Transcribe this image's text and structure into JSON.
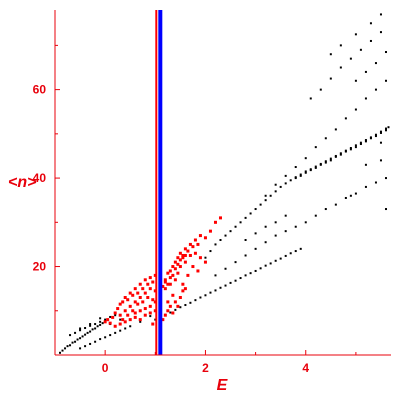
{
  "chart_data": {
    "type": "scatter",
    "title": "",
    "xlabel": "E",
    "ylabel": "<n>",
    "xlim": [
      -1.0,
      5.7
    ],
    "ylim": [
      0,
      78
    ],
    "x_ticks": [
      0,
      2,
      4
    ],
    "x_tick_labels": [
      "0",
      "2",
      "4"
    ],
    "y_ticks": [
      20,
      40,
      60
    ],
    "y_tick_labels": [
      "20",
      "40",
      "60"
    ],
    "grid": false,
    "legend": "none",
    "colors": {
      "axes": "#e8000b",
      "label_text": "#e8000b",
      "scatter_black": "#000000",
      "scatter_red": "#ff0000",
      "vline_blue": "#0000ff",
      "vline_red": "#ff0000"
    },
    "vertical_lines": [
      {
        "x": 1.02,
        "color": "#ff0000"
      },
      {
        "x": 1.1,
        "color": "#0000ff"
      }
    ],
    "series": [
      {
        "points": [
          [
            -0.9,
            0.5
          ],
          [
            -0.85,
            1.0
          ],
          [
            -0.8,
            1.5
          ],
          [
            -0.75,
            2.0
          ],
          [
            -0.7,
            2.2
          ],
          [
            -0.65,
            2.8
          ],
          [
            -0.6,
            3.0
          ],
          [
            -0.55,
            3.5
          ],
          [
            -0.5,
            3.8
          ],
          [
            -0.45,
            4.2
          ],
          [
            -0.4,
            4.6
          ],
          [
            -0.35,
            5.0
          ],
          [
            -0.3,
            5.3
          ],
          [
            -0.25,
            5.8
          ],
          [
            -0.2,
            6.0
          ],
          [
            -0.15,
            6.5
          ],
          [
            -0.1,
            6.8
          ],
          [
            -0.05,
            7.2
          ],
          [
            0.0,
            7.5
          ],
          [
            0.05,
            7.9
          ],
          [
            -0.7,
            4.5
          ],
          [
            -0.6,
            5.0
          ],
          [
            -0.5,
            5.6
          ],
          [
            -0.4,
            6.1
          ],
          [
            -0.3,
            6.6
          ],
          [
            -0.2,
            7.0
          ],
          [
            -0.1,
            7.5
          ],
          [
            0.0,
            8.0
          ],
          [
            0.1,
            8.6
          ],
          [
            0.2,
            9.0
          ],
          [
            -0.5,
            1.5
          ],
          [
            -0.4,
            2.0
          ],
          [
            -0.3,
            2.5
          ],
          [
            -0.2,
            3.0
          ],
          [
            -0.1,
            3.6
          ],
          [
            0.0,
            4.0
          ],
          [
            0.1,
            4.5
          ],
          [
            0.2,
            5.0
          ],
          [
            0.3,
            5.5
          ],
          [
            0.4,
            6.0
          ],
          [
            1.0,
            8.0
          ],
          [
            1.1,
            8.6
          ],
          [
            1.2,
            9.1
          ],
          [
            1.3,
            9.6
          ],
          [
            1.4,
            10.2
          ],
          [
            1.5,
            10.8
          ],
          [
            1.6,
            11.3
          ],
          [
            1.7,
            11.8
          ],
          [
            1.8,
            12.4
          ],
          [
            1.9,
            13.0
          ],
          [
            2.0,
            13.5
          ],
          [
            2.1,
            14.1
          ],
          [
            2.2,
            14.6
          ],
          [
            2.3,
            15.2
          ],
          [
            2.4,
            15.7
          ],
          [
            2.5,
            16.3
          ],
          [
            2.6,
            16.8
          ],
          [
            2.7,
            17.4
          ],
          [
            2.8,
            18.0
          ],
          [
            2.9,
            18.5
          ],
          [
            3.0,
            19.0
          ],
          [
            3.1,
            19.6
          ],
          [
            3.2,
            20.2
          ],
          [
            3.3,
            20.7
          ],
          [
            3.4,
            21.3
          ],
          [
            3.5,
            21.8
          ],
          [
            3.6,
            22.4
          ],
          [
            3.7,
            23.0
          ],
          [
            3.8,
            23.5
          ],
          [
            3.9,
            24.0
          ],
          [
            2.2,
            18.0
          ],
          [
            2.4,
            19.5
          ],
          [
            2.6,
            21.0
          ],
          [
            2.8,
            22.5
          ],
          [
            3.0,
            24.0
          ],
          [
            3.2,
            25.5
          ],
          [
            3.4,
            27.0
          ],
          [
            3.6,
            28.0
          ],
          [
            3.8,
            29.0
          ],
          [
            4.0,
            30.0
          ],
          [
            4.2,
            31.5
          ],
          [
            4.4,
            33.0
          ],
          [
            4.6,
            34.0
          ],
          [
            4.8,
            35.5
          ],
          [
            5.0,
            36.5
          ],
          [
            5.2,
            38.0
          ],
          [
            5.4,
            39.0
          ],
          [
            5.6,
            40.0
          ],
          [
            2.0,
            22.0
          ],
          [
            2.1,
            23.5
          ],
          [
            2.2,
            25.0
          ],
          [
            2.3,
            26.0
          ],
          [
            2.4,
            27.0
          ],
          [
            2.5,
            28.0
          ],
          [
            2.6,
            29.0
          ],
          [
            2.7,
            30.0
          ],
          [
            2.8,
            31.0
          ],
          [
            2.9,
            32.0
          ],
          [
            3.0,
            33.0
          ],
          [
            3.1,
            34.0
          ],
          [
            3.2,
            35.0
          ],
          [
            3.3,
            36.0
          ],
          [
            3.4,
            37.0
          ],
          [
            3.5,
            38.0
          ],
          [
            3.6,
            38.8
          ],
          [
            3.7,
            39.5
          ],
          [
            3.8,
            40.2
          ],
          [
            3.9,
            40.8
          ],
          [
            4.0,
            41.5
          ],
          [
            4.1,
            42.0
          ],
          [
            4.2,
            42.6
          ],
          [
            4.3,
            43.2
          ],
          [
            4.4,
            43.8
          ],
          [
            4.5,
            44.4
          ],
          [
            4.6,
            45.0
          ],
          [
            4.7,
            45.6
          ],
          [
            4.8,
            46.2
          ],
          [
            4.9,
            46.8
          ],
          [
            5.0,
            47.4
          ],
          [
            5.1,
            48.0
          ],
          [
            5.2,
            48.6
          ],
          [
            5.3,
            49.2
          ],
          [
            5.4,
            49.8
          ],
          [
            5.5,
            50.5
          ],
          [
            5.6,
            51.2
          ],
          [
            5.65,
            51.5
          ],
          [
            3.8,
            40.0
          ],
          [
            3.9,
            40.5
          ],
          [
            4.0,
            41.2
          ],
          [
            4.1,
            41.8
          ],
          [
            4.2,
            42.3
          ],
          [
            4.3,
            43.0
          ],
          [
            4.4,
            43.5
          ],
          [
            4.5,
            44.0
          ],
          [
            4.6,
            44.8
          ],
          [
            4.7,
            45.3
          ],
          [
            4.8,
            46.0
          ],
          [
            4.9,
            46.5
          ],
          [
            5.0,
            47.0
          ],
          [
            5.1,
            47.7
          ],
          [
            5.2,
            48.3
          ],
          [
            5.3,
            49.0
          ],
          [
            5.4,
            49.5
          ],
          [
            5.5,
            50.2
          ],
          [
            5.6,
            50.8
          ],
          [
            2.8,
            26.0
          ],
          [
            3.0,
            27.5
          ],
          [
            3.2,
            29.0
          ],
          [
            3.4,
            30.0
          ],
          [
            3.6,
            31.5
          ],
          [
            3.2,
            36.0
          ],
          [
            3.4,
            38.5
          ],
          [
            3.6,
            40.5
          ],
          [
            3.8,
            42.5
          ],
          [
            4.0,
            44.5
          ],
          [
            4.2,
            47.0
          ],
          [
            4.4,
            49.0
          ],
          [
            4.6,
            51.0
          ],
          [
            4.8,
            53.5
          ],
          [
            5.0,
            55.5
          ],
          [
            5.2,
            58.0
          ],
          [
            5.4,
            60.0
          ],
          [
            5.6,
            62.0
          ],
          [
            4.1,
            58.0
          ],
          [
            4.3,
            60.0
          ],
          [
            4.5,
            62.5
          ],
          [
            4.7,
            65.0
          ],
          [
            4.9,
            67.0
          ],
          [
            5.1,
            69.0
          ],
          [
            5.3,
            71.0
          ],
          [
            5.5,
            73.0
          ],
          [
            4.5,
            68.0
          ],
          [
            4.7,
            70.0
          ],
          [
            5.0,
            72.5
          ],
          [
            5.3,
            75.0
          ],
          [
            5.5,
            77.0
          ],
          [
            5.0,
            62.0
          ],
          [
            5.2,
            64.0
          ],
          [
            5.4,
            66.0
          ],
          [
            5.6,
            68.5
          ],
          [
            5.5,
            44.0
          ],
          [
            5.5,
            48.0
          ],
          [
            5.6,
            33.0
          ],
          [
            5.2,
            43.0
          ],
          [
            4.9,
            36.0
          ],
          [
            -0.5,
            6.0
          ],
          [
            -0.3,
            7.0
          ],
          [
            -0.1,
            8.3
          ],
          [
            0.1,
            7.0
          ],
          [
            0.3,
            8.0
          ],
          [
            0.5,
            6.5
          ],
          [
            0.7,
            7.5
          ],
          [
            0.9,
            8.8
          ]
        ],
        "color": "#000000"
      },
      {
        "points": [
          [
            0.0,
            7.5
          ],
          [
            0.05,
            8.0
          ],
          [
            0.1,
            7.2
          ],
          [
            0.15,
            8.5
          ],
          [
            0.2,
            9.5
          ],
          [
            0.25,
            10.5
          ],
          [
            0.3,
            9.0
          ],
          [
            0.3,
            11.5
          ],
          [
            0.35,
            12.0
          ],
          [
            0.35,
            8.0
          ],
          [
            0.4,
            13.0
          ],
          [
            0.4,
            10.0
          ],
          [
            0.45,
            12.5
          ],
          [
            0.45,
            9.0
          ],
          [
            0.5,
            14.0
          ],
          [
            0.5,
            11.0
          ],
          [
            0.55,
            13.5
          ],
          [
            0.55,
            10.0
          ],
          [
            0.6,
            15.0
          ],
          [
            0.6,
            12.0
          ],
          [
            0.6,
            8.5
          ],
          [
            0.65,
            14.0
          ],
          [
            0.65,
            11.5
          ],
          [
            0.7,
            16.0
          ],
          [
            0.7,
            13.0
          ],
          [
            0.7,
            10.0
          ],
          [
            0.75,
            15.0
          ],
          [
            0.75,
            12.0
          ],
          [
            0.8,
            17.0
          ],
          [
            0.8,
            14.0
          ],
          [
            0.8,
            9.0
          ],
          [
            0.85,
            16.0
          ],
          [
            0.85,
            13.0
          ],
          [
            0.9,
            17.5
          ],
          [
            0.9,
            15.0
          ],
          [
            0.9,
            11.0
          ],
          [
            0.95,
            16.5
          ],
          [
            0.95,
            12.5
          ],
          [
            1.0,
            18.0
          ],
          [
            1.0,
            14.5
          ],
          [
            1.0,
            10.0
          ],
          [
            1.2,
            17.0
          ],
          [
            1.2,
            15.0
          ],
          [
            1.25,
            18.5
          ],
          [
            1.25,
            12.0
          ],
          [
            1.3,
            19.0
          ],
          [
            1.3,
            16.0
          ],
          [
            1.35,
            20.0
          ],
          [
            1.35,
            13.5
          ],
          [
            1.4,
            21.0
          ],
          [
            1.4,
            17.0
          ],
          [
            1.45,
            22.0
          ],
          [
            1.45,
            18.5
          ],
          [
            1.5,
            23.0
          ],
          [
            1.5,
            20.0
          ],
          [
            1.55,
            22.5
          ],
          [
            1.55,
            16.0
          ],
          [
            1.6,
            24.0
          ],
          [
            1.6,
            21.0
          ],
          [
            1.65,
            23.5
          ],
          [
            1.65,
            18.0
          ],
          [
            1.7,
            25.0
          ],
          [
            1.7,
            22.5
          ],
          [
            1.75,
            24.5
          ],
          [
            1.75,
            20.0
          ],
          [
            1.8,
            26.0
          ],
          [
            1.8,
            23.0
          ],
          [
            1.85,
            25.0
          ],
          [
            1.85,
            19.0
          ],
          [
            1.9,
            27.0
          ],
          [
            1.9,
            22.0
          ],
          [
            2.0,
            26.5
          ],
          [
            2.0,
            21.0
          ],
          [
            2.1,
            28.0
          ],
          [
            2.2,
            30.0
          ],
          [
            2.3,
            31.0
          ],
          [
            1.15,
            15.5
          ],
          [
            1.2,
            16.5
          ],
          [
            1.25,
            16.0
          ],
          [
            1.3,
            17.5
          ],
          [
            1.35,
            18.0
          ],
          [
            1.4,
            19.5
          ],
          [
            1.45,
            20.5
          ],
          [
            1.5,
            21.5
          ],
          [
            1.55,
            22.0
          ],
          [
            1.6,
            22.5
          ],
          [
            1.15,
            8.0
          ],
          [
            1.2,
            9.0
          ],
          [
            1.25,
            10.0
          ],
          [
            1.3,
            11.0
          ],
          [
            1.35,
            9.5
          ],
          [
            1.4,
            12.0
          ],
          [
            1.45,
            11.0
          ],
          [
            1.5,
            13.0
          ],
          [
            1.55,
            14.5
          ],
          [
            1.6,
            15.0
          ],
          [
            0.2,
            6.5
          ],
          [
            0.3,
            7.0
          ],
          [
            0.4,
            7.5
          ],
          [
            0.5,
            8.0
          ],
          [
            0.6,
            9.5
          ],
          [
            0.7,
            8.0
          ],
          [
            0.8,
            10.5
          ],
          [
            0.9,
            9.5
          ],
          [
            0.95,
            7.0
          ],
          [
            1.0,
            12.0
          ]
        ],
        "color": "#ff0000"
      }
    ]
  }
}
